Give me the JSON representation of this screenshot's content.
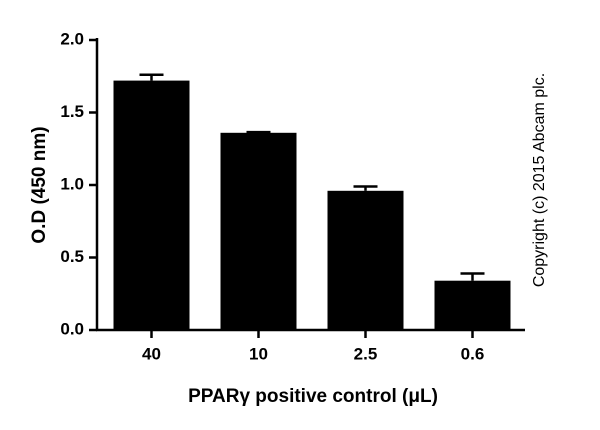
{
  "chart_data": {
    "type": "bar",
    "y_label": "O.D (450 nm)",
    "x_label": "PPARγ positive control (μL)",
    "annotation": "Copyright (c) 2015 Abcam plc.",
    "categories": [
      "40",
      "10",
      "2.5",
      "0.6"
    ],
    "values": [
      1.72,
      1.36,
      0.96,
      0.34
    ],
    "errors": [
      0.04,
      0.005,
      0.03,
      0.05
    ],
    "color": "#000000",
    "ylim": [
      0,
      2.0
    ],
    "yticks": [
      {
        "value": 0,
        "label": "0.0"
      },
      {
        "value": 0.5,
        "label": "0.5"
      },
      {
        "value": 1.0,
        "label": "1.0"
      },
      {
        "value": 1.5,
        "label": "1.5"
      },
      {
        "value": 2.0,
        "label": "2.0"
      }
    ]
  }
}
